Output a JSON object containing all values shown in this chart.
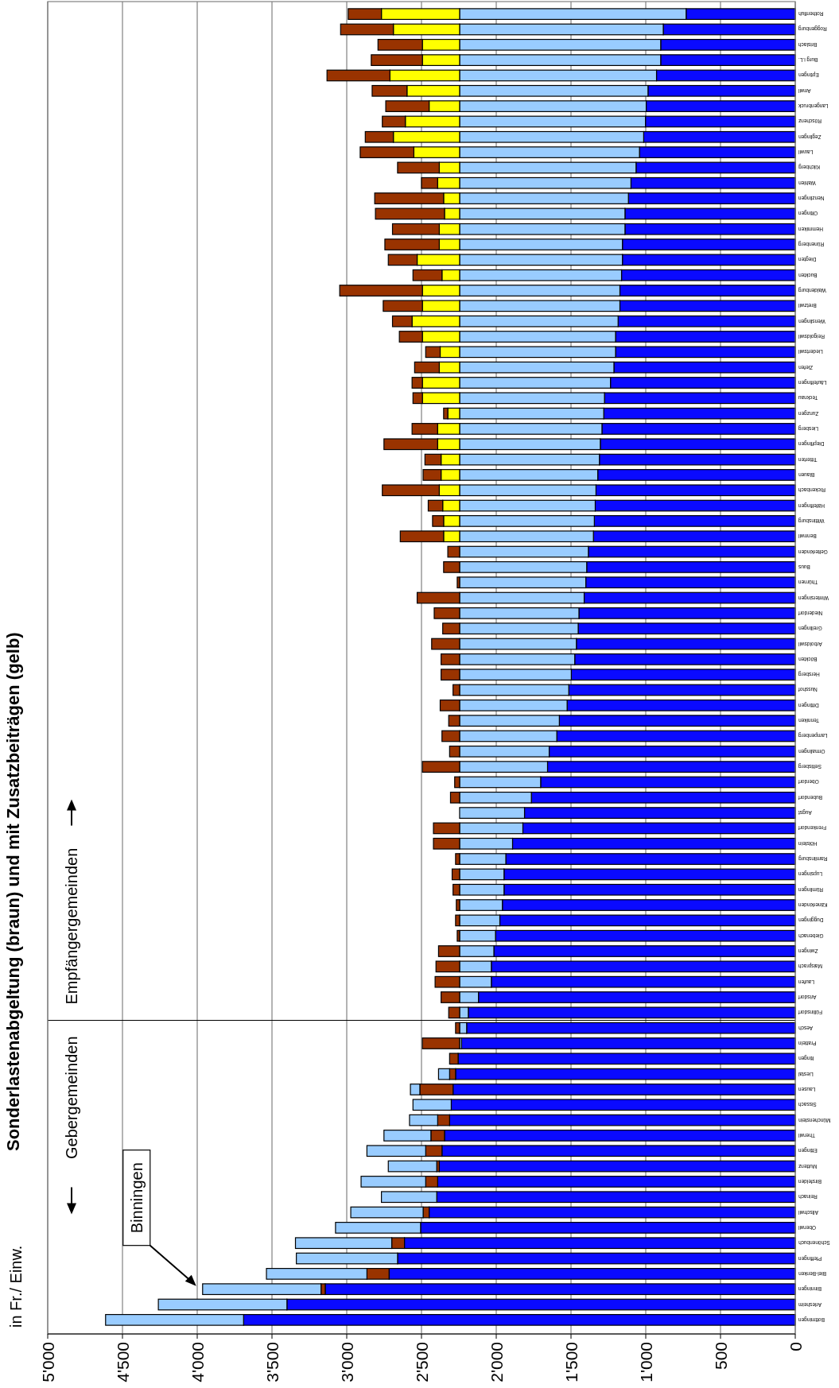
{
  "chart_data": {
    "type": "bar",
    "stacked": true,
    "orientation": "horizontal",
    "title": "Sonderlastenabgeltung (braun) und mit Zusatzbeiträgen (gelb)",
    "categories": [
      "Rothenfluh",
      "Roggenburg",
      "Brislach",
      "Burg i.L.",
      "Eptingen",
      "Anwil",
      "Langenbruck",
      "Röschenz",
      "Zeglingen",
      "Lauwil",
      "Kilchberg",
      "Wahlen",
      "Nenzlingen",
      "Oltingen",
      "Hemmiken",
      "Rünenberg",
      "Diegten",
      "Buckten",
      "Waldenburg",
      "Bretzwil",
      "Wenslingen",
      "Reigoldswil",
      "Liedertswil",
      "Ziefen",
      "Läufelfingen",
      "Tecknau",
      "Zunzgen",
      "Liesberg",
      "Diepflingen",
      "Titterten",
      "Blauen",
      "Rickenbach",
      "Häfelfingen",
      "Wittinsburg",
      "Bennwil",
      "Gelterkinden",
      "Buus",
      "Thürnen",
      "Wintersingen",
      "Niederdorf",
      "Grellingen",
      "Arboldswil",
      "Böckten",
      "Hersberg",
      "Nusshof",
      "Dittingen",
      "Tenniken",
      "Lampenberg",
      "Ormalingen",
      "Seltisberg",
      "Oberdorf",
      "Bubendorf",
      "Augst",
      "Frenkendorf",
      "Hölstein",
      "Ramlinsburg",
      "Lupsingen",
      "Rümlingen",
      "Känerkinden",
      "Duggingen",
      "Giebenach",
      "Zwingen",
      "Maisprach",
      "Laufen",
      "Arisdorf",
      "Füllinsdorf",
      "Aesch",
      "Pratteln",
      "Itingen",
      "Liestal",
      "Lausen",
      "Sissach",
      "Münchenstein",
      "Therwil",
      "Ettingen",
      "Muttenz",
      "Birsfelden",
      "Reinach",
      "Allschwil",
      "Oberwil",
      "Schönenbuch",
      "Pfeffingen",
      "Biel-Benken",
      "Binningen",
      "Arlesheim",
      "Bottmingen"
    ],
    "series": [
      {
        "color": "#0a0aff",
        "values": [
          730,
          883,
          900,
          900,
          928,
          985,
          997,
          1002,
          1014,
          1042,
          1065,
          1099,
          1116,
          1139,
          1139,
          1156,
          1156,
          1162,
          1173,
          1173,
          1185,
          1202,
          1202,
          1213,
          1236,
          1276,
          1281,
          1293,
          1304,
          1310,
          1321,
          1333,
          1338,
          1344,
          1350,
          1384,
          1395,
          1401,
          1412,
          1447,
          1452,
          1464,
          1475,
          1498,
          1515,
          1526,
          1578,
          1595,
          1646,
          1657,
          1703,
          1765,
          1811,
          1822,
          1891,
          1936,
          1948,
          1948,
          1959,
          1976,
          2005,
          2016,
          2033,
          2033,
          2119,
          2187,
          2198,
          2232,
          2255,
          2272,
          2289,
          2301,
          2312,
          2346,
          2363,
          2381,
          2392,
          2398,
          2449,
          2506,
          2614,
          2660,
          2717,
          3144,
          3400,
          3690
        ]
      },
      {
        "color": "#99ccff",
        "values": [
          1515,
          1362,
          1345,
          1345,
          1317,
          1260,
          1248,
          1243,
          1231,
          1203,
          1180,
          1146,
          1129,
          1106,
          1106,
          1089,
          1089,
          1083,
          1072,
          1072,
          1060,
          1043,
          1043,
          1032,
          1009,
          969,
          964,
          952,
          941,
          935,
          924,
          912,
          907,
          901,
          895,
          861,
          850,
          844,
          833,
          798,
          793,
          781,
          770,
          747,
          730,
          719,
          667,
          650,
          599,
          588,
          542,
          480,
          434,
          423,
          354,
          309,
          297,
          297,
          286,
          269,
          240,
          229,
          212,
          212,
          126,
          58,
          47,
          13,
          null,
          null,
          null,
          null,
          null,
          null,
          null,
          null,
          null,
          null,
          null,
          null,
          null,
          null,
          null,
          null,
          null,
          null
        ]
      },
      {
        "color": "#ffff00",
        "values": [
          523,
          443,
          249,
          249,
          466,
          352,
          204,
          363,
          443,
          306,
          136,
          147,
          107,
          101,
          136,
          136,
          284,
          118,
          249,
          249,
          318,
          249,
          130,
          136,
          249,
          249,
          79,
          147,
          147,
          124,
          124,
          136,
          113,
          107,
          107,
          null,
          null,
          null,
          null,
          null,
          null,
          null,
          null,
          null,
          null,
          null,
          null,
          null,
          null,
          null,
          null,
          null,
          null,
          null,
          null,
          null,
          null,
          null,
          null,
          null,
          null,
          null,
          null,
          null,
          null,
          null,
          null,
          null,
          null,
          null,
          null,
          null,
          null,
          null,
          null,
          null,
          null,
          null,
          null,
          null,
          null,
          null,
          null,
          null,
          null,
          null
        ]
      },
      {
        "color": "#993300",
        "values": [
          222,
          353,
          297,
          342,
          421,
          233,
          290,
          154,
          188,
          359,
          279,
          108,
          461,
          462,
          313,
          364,
          193,
          194,
          553,
          262,
          131,
          154,
          97,
          165,
          69,
          63,
          28,
          171,
          359,
          108,
          120,
          381,
          97,
          74,
          290,
          79,
          107,
          16,
          284,
          170,
          113,
          187,
          124,
          124,
          44,
          130,
          73,
          118,
          67,
          249,
          33,
          61,
          null,
          175,
          175,
          27,
          50,
          44,
          22,
          27,
          16,
          141,
          158,
          164,
          124,
          73,
          27,
          249,
          57,
          40,
          222,
          null,
          80,
          91,
          109,
          17,
          80,
          null,
          40,
          null,
          85,
          null,
          148,
          28,
          null,
          null
        ]
      },
      {
        "color": "#99ccff",
        "values": [
          null,
          null,
          null,
          null,
          null,
          null,
          null,
          null,
          null,
          null,
          null,
          null,
          null,
          null,
          null,
          null,
          null,
          null,
          null,
          null,
          null,
          null,
          null,
          null,
          null,
          null,
          null,
          null,
          null,
          null,
          null,
          null,
          null,
          null,
          null,
          null,
          null,
          null,
          null,
          null,
          null,
          null,
          null,
          null,
          null,
          null,
          null,
          null,
          null,
          null,
          null,
          null,
          null,
          null,
          null,
          null,
          null,
          null,
          null,
          null,
          null,
          null,
          null,
          null,
          null,
          null,
          null,
          null,
          null,
          74,
          63,
          256,
          188,
          314,
          393,
          324,
          432,
          370,
          484,
          569,
          644,
          677,
          672,
          792,
          860,
          923
        ]
      }
    ],
    "xlim": [
      5000,
      0
    ],
    "xticks": [
      {
        "value": 5000,
        "label": "5'000"
      },
      {
        "value": 4500,
        "label": "4'500"
      },
      {
        "value": 4000,
        "label": "4'000"
      },
      {
        "value": 3500,
        "label": "3'500"
      },
      {
        "value": 3000,
        "label": "3'000"
      },
      {
        "value": 2500,
        "label": "2'500"
      },
      {
        "value": 2000,
        "label": "2'000"
      },
      {
        "value": 1500,
        "label": "1'500"
      },
      {
        "value": 1000,
        "label": "1'000"
      },
      {
        "value": 500,
        "label": "500"
      },
      {
        "value": 0,
        "label": "0"
      }
    ],
    "grid": "x",
    "ref_lines": [
      {
        "axis": "y",
        "value": "Aesch"
      }
    ],
    "annotations": [
      "in Fr./ Einw.",
      "Binningen",
      "Gebergemeinden",
      "Empfängergemeinden"
    ]
  }
}
